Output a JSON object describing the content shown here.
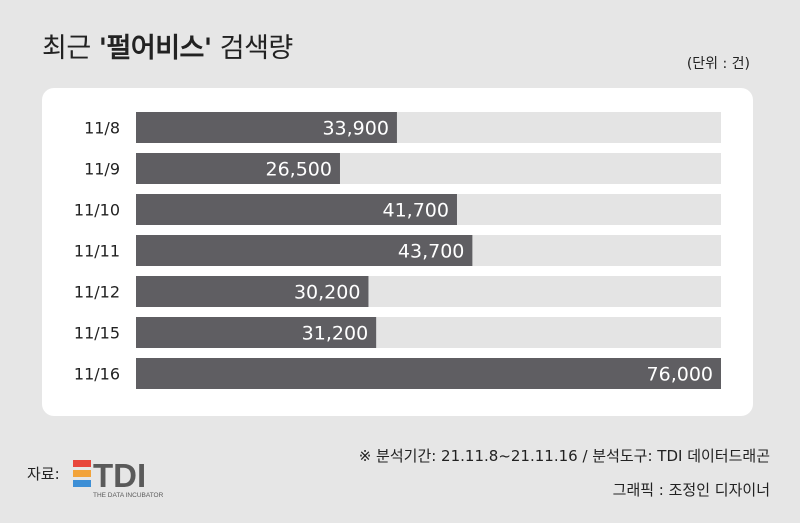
{
  "header": {
    "title_prefix": "최근 ",
    "title_strong": "'펄어비스'",
    "title_suffix": " 검색량",
    "unit": "(단위 : 건)"
  },
  "chart_data": {
    "type": "bar",
    "orientation": "horizontal",
    "categories": [
      "11/8",
      "11/9",
      "11/10",
      "11/11",
      "11/12",
      "11/15",
      "11/16"
    ],
    "values": [
      33900,
      26500,
      41700,
      43700,
      30200,
      31200,
      76000
    ],
    "value_labels": [
      "33,900",
      "26,500",
      "41,700",
      "43,700",
      "30,200",
      "31,200",
      "76,000"
    ],
    "xlim": [
      0,
      76000
    ],
    "bar_color": "#5f5e62",
    "track_color": "#e4e4e4",
    "grid": false
  },
  "footer": {
    "note": "※ 분석기간: 21.11.8~21.11.16 / 분석도구: TDI 데이터드래곤",
    "credit": "그래픽 : 조정인 디자이너",
    "source_label": "자료:",
    "logo_text": "TDI",
    "logo_tagline": "THE DATA INCUBATOR",
    "logo_colors": [
      "#e8463b",
      "#f2a33a",
      "#3d8fd6"
    ],
    "logo_text_color": "#5a5a5a"
  }
}
